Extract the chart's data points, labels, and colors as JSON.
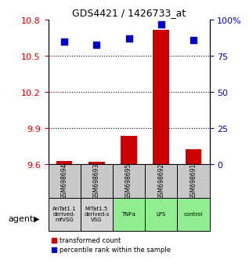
{
  "title": "GDS4421 / 1426733_at",
  "samples": [
    "GSM698694",
    "GSM698693",
    "GSM698695",
    "GSM698692",
    "GSM698691"
  ],
  "agents": [
    "AnTat1.1\nderived-\nmfVSG",
    "MITat1.5\nderived-s\nVSG",
    "TNFα",
    "LPS",
    "control"
  ],
  "agent_colors": [
    "#d3d3d3",
    "#d3d3d3",
    "#90ee90",
    "#90ee90",
    "#90ee90"
  ],
  "bar_values": [
    9.63,
    9.62,
    9.84,
    10.72,
    9.73
  ],
  "dot_values": [
    85,
    83,
    87,
    97,
    86
  ],
  "bar_color": "#cc0000",
  "dot_color": "#0000cc",
  "ylim_left": [
    9.6,
    10.8
  ],
  "ylim_right": [
    0,
    100
  ],
  "yticks_left": [
    9.6,
    9.9,
    10.2,
    10.5,
    10.8
  ],
  "yticks_right": [
    0,
    25,
    50,
    75,
    100
  ],
  "ytick_labels_left": [
    "9.6",
    "9.9",
    "10.2",
    "10.5",
    "10.8"
  ],
  "ytick_labels_right": [
    "0",
    "25",
    "50",
    "75",
    "100%"
  ],
  "hlines": [
    9.9,
    10.2,
    10.5
  ],
  "legend_red": "transformed count",
  "legend_blue": "percentile rank within the sample",
  "agent_label": "agent"
}
